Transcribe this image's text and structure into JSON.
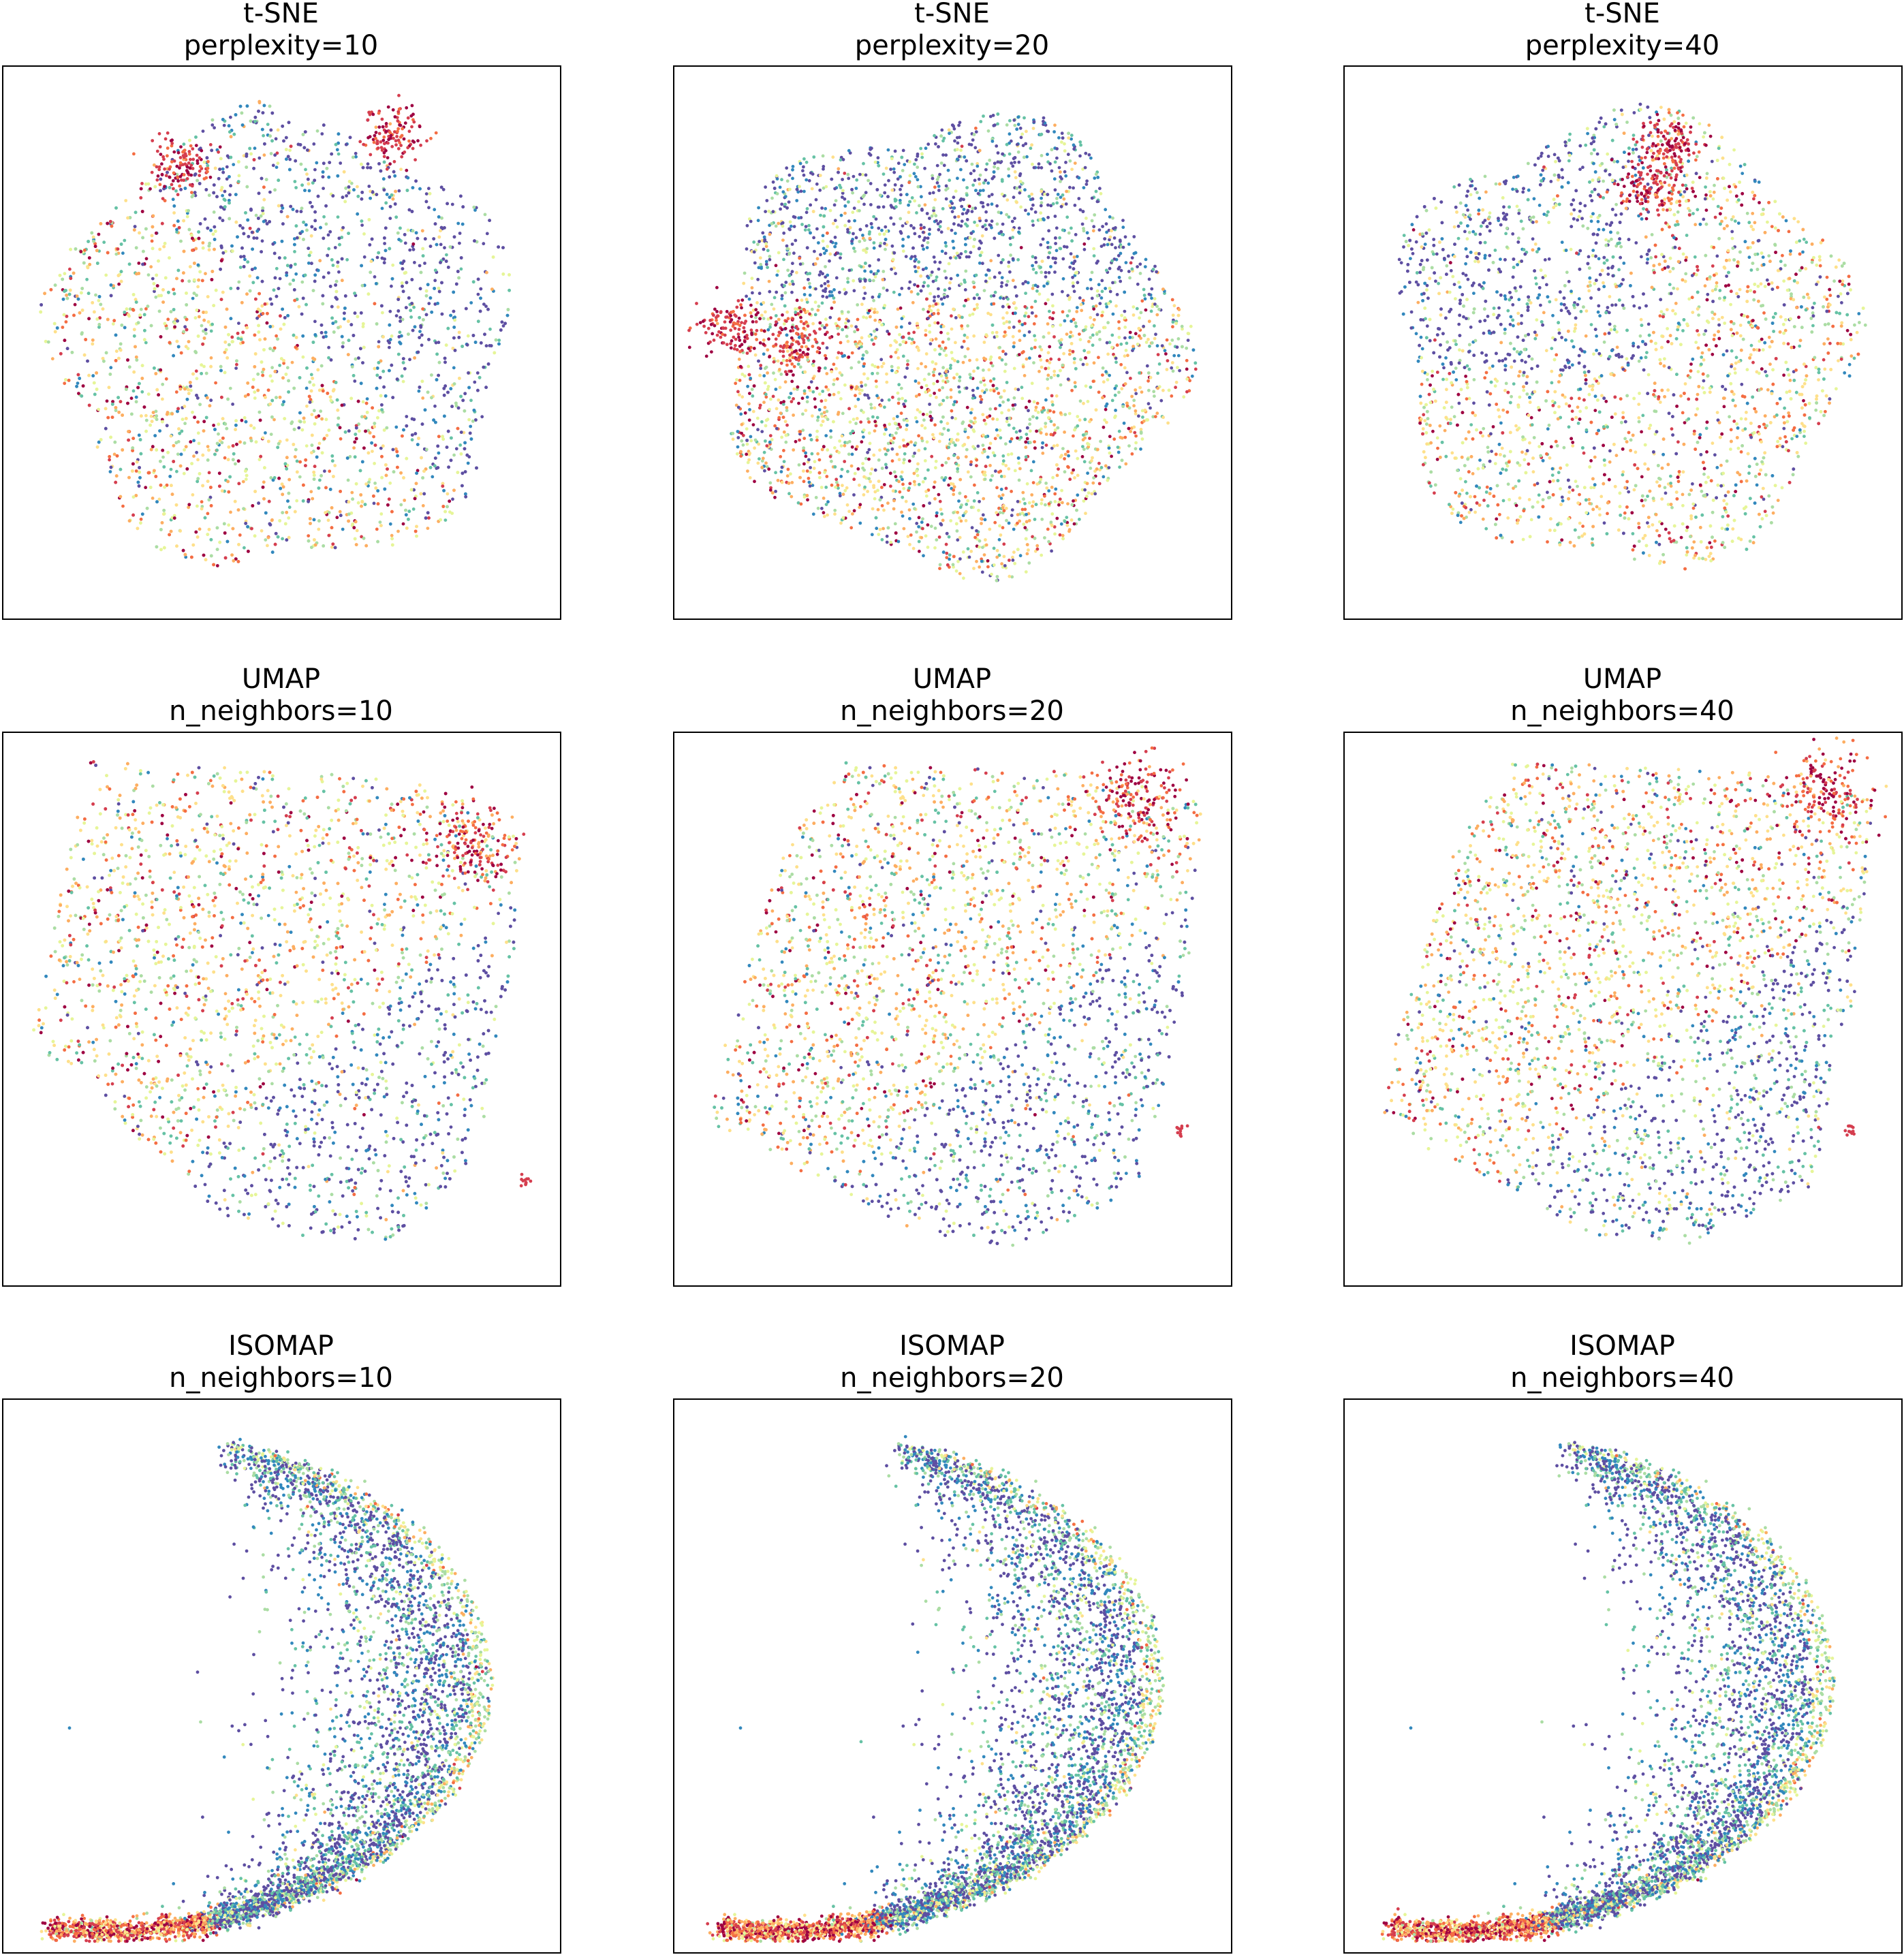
{
  "chart_data": [
    {
      "type": "scatter",
      "method": "t-SNE",
      "title": "t-SNE",
      "subtitle": "perplexity=10",
      "shape": "blob",
      "variant": 10
    },
    {
      "type": "scatter",
      "method": "t-SNE",
      "title": "t-SNE",
      "subtitle": "perplexity=20",
      "shape": "blob",
      "variant": 20
    },
    {
      "type": "scatter",
      "method": "t-SNE",
      "title": "t-SNE",
      "subtitle": "perplexity=40",
      "shape": "blob",
      "variant": 40
    },
    {
      "type": "scatter",
      "method": "UMAP",
      "title": "UMAP",
      "subtitle": "n_neighbors=10",
      "shape": "square",
      "variant": 10
    },
    {
      "type": "scatter",
      "method": "UMAP",
      "title": "UMAP",
      "subtitle": "n_neighbors=20",
      "shape": "square",
      "variant": 20
    },
    {
      "type": "scatter",
      "method": "UMAP",
      "title": "UMAP",
      "subtitle": "n_neighbors=40",
      "shape": "square",
      "variant": 40
    },
    {
      "type": "scatter",
      "method": "ISOMAP",
      "title": "ISOMAP",
      "subtitle": "n_neighbors=10",
      "shape": "horseshoe",
      "variant": 10
    },
    {
      "type": "scatter",
      "method": "ISOMAP",
      "title": "ISOMAP",
      "subtitle": "n_neighbors=20",
      "shape": "horseshoe",
      "variant": 20
    },
    {
      "type": "scatter",
      "method": "ISOMAP",
      "title": "ISOMAP",
      "subtitle": "n_neighbors=40",
      "shape": "horseshoe",
      "variant": 40
    }
  ],
  "colormap": "Spectral",
  "palette": [
    "#9e0142",
    "#d53e4f",
    "#f46d43",
    "#fdae61",
    "#fee08b",
    "#e6f598",
    "#abdda4",
    "#66c2a5",
    "#3288bd",
    "#5e4fa2"
  ],
  "axes_ticks": "hidden",
  "grid": false,
  "legend": "none"
}
